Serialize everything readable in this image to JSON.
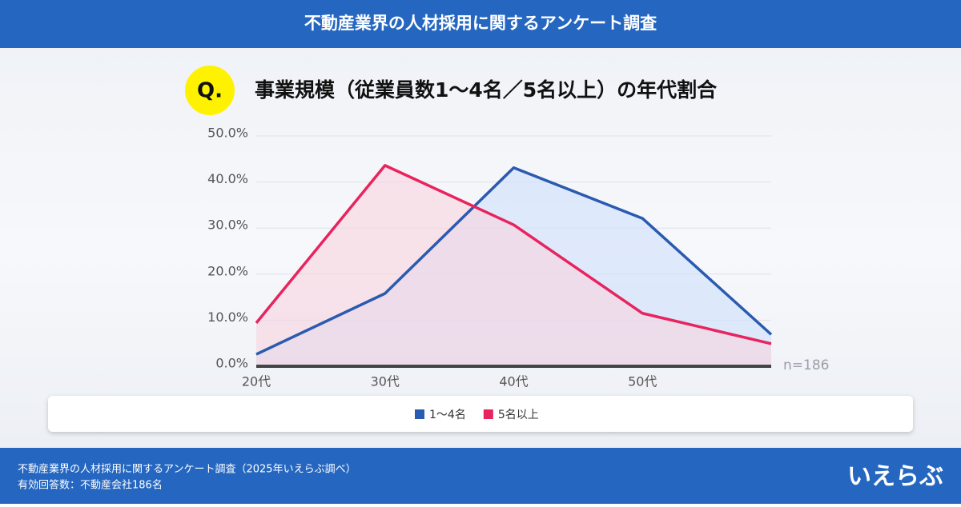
{
  "header": {
    "title": "不動産業界の人材採用に関するアンケート調査"
  },
  "question": "Q.",
  "chart_data": {
    "type": "line",
    "title": "事業規模（従業員数1〜4名／5名以上）の年代割合",
    "categories": [
      "20代",
      "30代",
      "40代",
      "50代",
      null
    ],
    "series": [
      {
        "name": "1〜4名",
        "color": "#2a5bb0",
        "fill": "#cfe0fb",
        "values": [
          2.6,
          15.8,
          43.1,
          32.1,
          6.9
        ]
      },
      {
        "name": "5名以上",
        "color": "#e8245e",
        "fill": "#f9d3df",
        "values": [
          9.4,
          43.6,
          30.7,
          11.5,
          4.9
        ]
      }
    ],
    "ylim": [
      0,
      50
    ],
    "yticks": [
      {
        "value": 0,
        "label": "0.0%"
      },
      {
        "value": 10,
        "label": "10.0%"
      },
      {
        "value": 20,
        "label": "20.0%"
      },
      {
        "value": 30,
        "label": "30.0%"
      },
      {
        "value": 40,
        "label": "40.0%"
      },
      {
        "value": 50,
        "label": "50.0%"
      }
    ],
    "grid": true,
    "legend": "bottom",
    "annotation": "n=186"
  },
  "footer": {
    "lines": [
      "不動産業界の人材採用に関するアンケート調査（2025年いえらぶ調べ）",
      "有効回答数：不動産会社186名"
    ],
    "logo": "いえらぶ"
  }
}
